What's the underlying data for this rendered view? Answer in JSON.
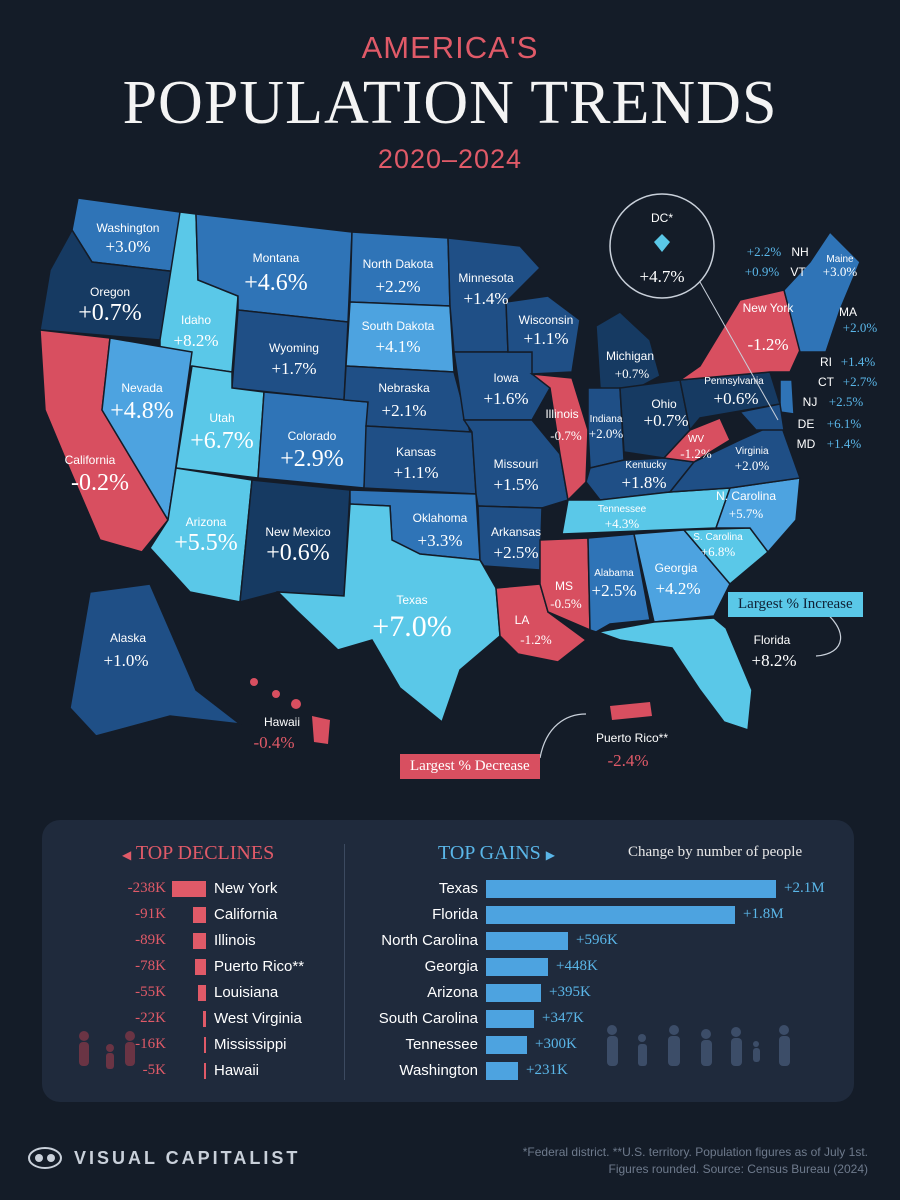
{
  "header": {
    "kicker": "AMERICA'S",
    "title": "POPULATION TRENDS",
    "years": "2020–2024"
  },
  "colors": {
    "background": "#141c28",
    "decline": "#d84f60",
    "lightest_increase": "#5ac8e8",
    "light_increase": "#4da3e0",
    "mid_increase": "#2f74b7",
    "dark_increase": "#1f4f86",
    "darkest_increase": "#163a62",
    "panel": "#1f2a3c"
  },
  "states": [
    {
      "name": "Washington",
      "change": "+3.0%"
    },
    {
      "name": "Oregon",
      "change": "+0.7%"
    },
    {
      "name": "California",
      "change": "-0.2%"
    },
    {
      "name": "Idaho",
      "change": "+8.2%"
    },
    {
      "name": "Nevada",
      "change": "+4.8%"
    },
    {
      "name": "Montana",
      "change": "+4.6%"
    },
    {
      "name": "Wyoming",
      "change": "+1.7%"
    },
    {
      "name": "Utah",
      "change": "+6.7%"
    },
    {
      "name": "Arizona",
      "change": "+5.5%"
    },
    {
      "name": "Colorado",
      "change": "+2.9%"
    },
    {
      "name": "New Mexico",
      "change": "+0.6%"
    },
    {
      "name": "North Dakota",
      "change": "+2.2%"
    },
    {
      "name": "South Dakota",
      "change": "+4.1%"
    },
    {
      "name": "Nebraska",
      "change": "+2.1%"
    },
    {
      "name": "Kansas",
      "change": "+1.1%"
    },
    {
      "name": "Oklahoma",
      "change": "+3.3%"
    },
    {
      "name": "Texas",
      "change": "+7.0%"
    },
    {
      "name": "Minnesota",
      "change": "+1.4%"
    },
    {
      "name": "Iowa",
      "change": "+1.6%"
    },
    {
      "name": "Missouri",
      "change": "+1.5%"
    },
    {
      "name": "Arkansas",
      "change": "+2.5%"
    },
    {
      "name": "LA",
      "change": "-1.2%"
    },
    {
      "name": "Wisconsin",
      "change": "+1.1%"
    },
    {
      "name": "Illinois",
      "change": "-0.7%"
    },
    {
      "name": "Michigan",
      "change": "+0.7%"
    },
    {
      "name": "Indiana",
      "change": "+2.0%"
    },
    {
      "name": "Ohio",
      "change": "+0.7%"
    },
    {
      "name": "Kentucky",
      "change": "+1.8%"
    },
    {
      "name": "Tennessee",
      "change": "+4.3%"
    },
    {
      "name": "MS",
      "change": "-0.5%"
    },
    {
      "name": "Alabama",
      "change": "+2.5%"
    },
    {
      "name": "Georgia",
      "change": "+4.2%"
    },
    {
      "name": "Florida",
      "change": "+8.2%"
    },
    {
      "name": "S. Carolina",
      "change": "+6.8%"
    },
    {
      "name": "N. Carolina",
      "change": "+5.7%"
    },
    {
      "name": "Virginia",
      "change": "+2.0%"
    },
    {
      "name": "WV",
      "change": "-1.2%"
    },
    {
      "name": "Pennsylvania",
      "change": "+0.6%"
    },
    {
      "name": "New York",
      "change": "-1.2%"
    },
    {
      "name": "Maine",
      "change": "+3.0%"
    },
    {
      "name": "Alaska",
      "change": "+1.0%"
    },
    {
      "name": "Hawaii",
      "change": "-0.4%"
    },
    {
      "name": "Puerto Rico**",
      "change": "-2.4%"
    },
    {
      "name": "DC*",
      "change": "+4.7%"
    }
  ],
  "small_states": [
    {
      "name": "NH",
      "change": "+2.2%"
    },
    {
      "name": "VT",
      "change": "+0.9%"
    },
    {
      "name": "MA",
      "change": "+2.0%"
    },
    {
      "name": "RI",
      "change": "+1.4%"
    },
    {
      "name": "CT",
      "change": "+2.7%"
    },
    {
      "name": "NJ",
      "change": "+2.5%"
    },
    {
      "name": "DE",
      "change": "+6.1%"
    },
    {
      "name": "MD",
      "change": "+1.4%"
    }
  ],
  "callouts": {
    "increase": "Largest % Increase",
    "decrease": "Largest % Decrease"
  },
  "panel": {
    "declines_title": "TOP DECLINES",
    "gains_title": "TOP GAINS",
    "change_note": "Change by number of people",
    "declines": [
      {
        "name": "New York",
        "value": "-238K",
        "amount": 238
      },
      {
        "name": "California",
        "value": "-91K",
        "amount": 91
      },
      {
        "name": "Illinois",
        "value": "-89K",
        "amount": 89
      },
      {
        "name": "Puerto Rico**",
        "value": "-78K",
        "amount": 78
      },
      {
        "name": "Louisiana",
        "value": "-55K",
        "amount": 55
      },
      {
        "name": "West Virginia",
        "value": "-22K",
        "amount": 22
      },
      {
        "name": "Mississippi",
        "value": "-16K",
        "amount": 16
      },
      {
        "name": "Hawaii",
        "value": "-5K",
        "amount": 5
      }
    ],
    "gains": [
      {
        "name": "Texas",
        "value": "+2.1M",
        "amount": 2100
      },
      {
        "name": "Florida",
        "value": "+1.8M",
        "amount": 1800
      },
      {
        "name": "North Carolina",
        "value": "+596K",
        "amount": 596
      },
      {
        "name": "Georgia",
        "value": "+448K",
        "amount": 448
      },
      {
        "name": "Arizona",
        "value": "+395K",
        "amount": 395
      },
      {
        "name": "South Carolina",
        "value": "+347K",
        "amount": 347
      },
      {
        "name": "Tennessee",
        "value": "+300K",
        "amount": 300
      },
      {
        "name": "Washington",
        "value": "+231K",
        "amount": 231
      }
    ]
  },
  "footer": {
    "brand": "VISUAL CAPITALIST",
    "footnote_1": "*Federal district. **U.S. territory. Population figures as of July 1st.",
    "footnote_2": "Figures rounded. Source: Census Bureau (2024)"
  }
}
